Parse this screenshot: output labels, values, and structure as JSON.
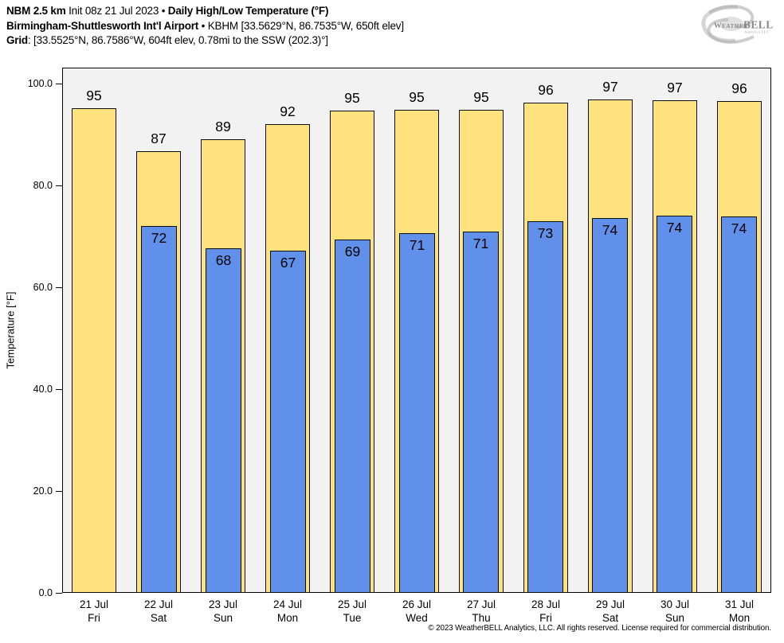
{
  "header": {
    "line1_bold1": "NBM 2.5 km",
    "line1_mid": " Init 08z 21 Jul 2023 • ",
    "line1_bold2": "Daily High/Low Temperature (°F)",
    "line2_bold": "Birmingham-Shuttlesworth Int'l Airport",
    "line2_rest": " • KBHM [33.5629°N, 86.7535°W, 650ft elev]",
    "line3_bold": "Grid",
    "line3_rest": ": [33.5525°N, 86.7586°W, 604ft elev, 0.78mi to the SSW (202.3)°]"
  },
  "logo": {
    "part1": "Weather",
    "part2": "BELL",
    "subtext": "Analytics LLC"
  },
  "footer": {
    "copyright": "© 2023 WeatherBELL Analytics, LLC. All rights reserved. License required for commercial distribution."
  },
  "chart_data": {
    "type": "bar",
    "title": "Daily High/Low Temperature (°F)",
    "ylabel": "Temperature [°F]",
    "ylim": [
      0,
      103.1
    ],
    "yticks": [
      0,
      20,
      40,
      60,
      80,
      100
    ],
    "ytick_labels": [
      "0.0",
      "20.0",
      "40.0",
      "60.0",
      "80.0",
      "100.0"
    ],
    "grid": false,
    "legend_position": "none",
    "plot_bg": "#f2f2f2",
    "bar_border": "#0d0d0d",
    "categories": [
      {
        "date": "21 Jul",
        "day": "Fri"
      },
      {
        "date": "22 Jul",
        "day": "Sat"
      },
      {
        "date": "23 Jul",
        "day": "Sun"
      },
      {
        "date": "24 Jul",
        "day": "Mon"
      },
      {
        "date": "25 Jul",
        "day": "Tue"
      },
      {
        "date": "26 Jul",
        "day": "Wed"
      },
      {
        "date": "27 Jul",
        "day": "Thu"
      },
      {
        "date": "28 Jul",
        "day": "Fri"
      },
      {
        "date": "29 Jul",
        "day": "Sat"
      },
      {
        "date": "30 Jul",
        "day": "Sun"
      },
      {
        "date": "31 Jul",
        "day": "Mon"
      }
    ],
    "series": [
      {
        "name": "Daily High",
        "color": "#fde27d",
        "values": [
          95,
          87,
          89,
          92,
          95,
          95,
          95,
          96,
          97,
          97,
          96
        ],
        "plot_values": [
          95.2,
          86.7,
          89.1,
          92.0,
          94.7,
          94.8,
          94.8,
          96.2,
          96.9,
          96.7,
          96.5
        ]
      },
      {
        "name": "Daily Low",
        "color": "#6190ea",
        "values": [
          null,
          72,
          68,
          67,
          69,
          71,
          71,
          73,
          74,
          74,
          74
        ],
        "plot_values": [
          null,
          72.0,
          67.7,
          67.2,
          69.4,
          70.6,
          70.9,
          73.0,
          73.6,
          74.1,
          73.9
        ]
      }
    ]
  }
}
